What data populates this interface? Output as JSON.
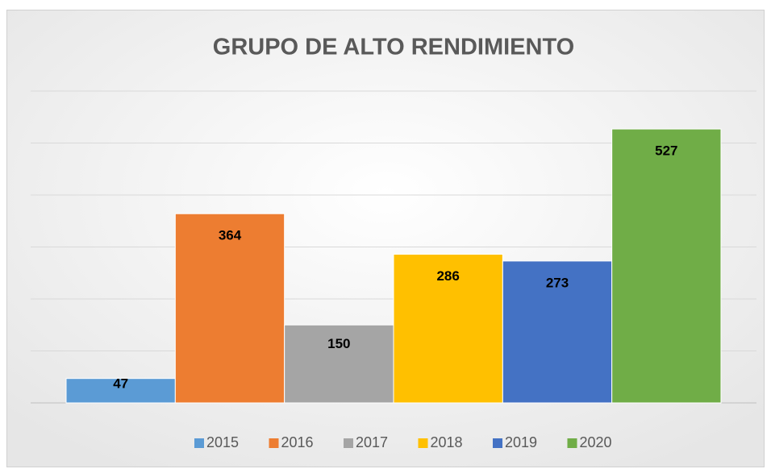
{
  "chart_data": {
    "type": "bar",
    "title": "GRUPO DE ALTO RENDIMIENTO",
    "series": [
      {
        "name": "2015",
        "color": "#5b9bd5",
        "values": [
          47
        ]
      },
      {
        "name": "2016",
        "color": "#ed7d31",
        "values": [
          364
        ]
      },
      {
        "name": "2017",
        "color": "#a5a5a5",
        "values": [
          150
        ]
      },
      {
        "name": "2018",
        "color": "#ffc000",
        "values": [
          286
        ]
      },
      {
        "name": "2019",
        "color": "#4472c4",
        "values": [
          273
        ]
      },
      {
        "name": "2020",
        "color": "#70ad47",
        "values": [
          527
        ]
      }
    ],
    "ylim": [
      0,
      600
    ],
    "yticks": [
      0,
      100,
      200,
      300,
      400,
      500,
      600
    ],
    "grid": true,
    "legend": "bottom"
  }
}
